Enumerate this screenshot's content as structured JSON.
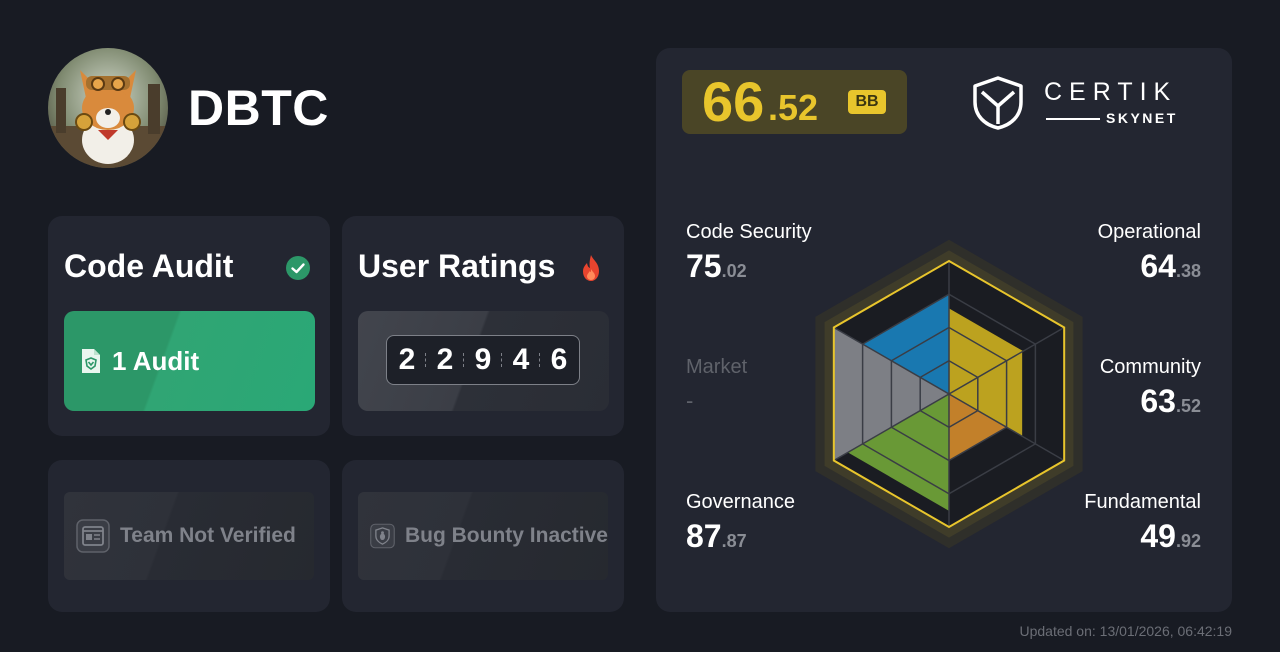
{
  "project": {
    "name": "DBTC",
    "avatar_icon": "corgi-miner-avatar"
  },
  "code_audit": {
    "title": "Code Audit",
    "status_icon": "verified-check-icon",
    "status_color": "#2c9768",
    "button_label": "1 Audit",
    "button_icon": "audit-document-icon"
  },
  "user_ratings": {
    "title": "User Ratings",
    "icon": "fire-icon",
    "digits": [
      "2",
      "2",
      "9",
      "4",
      "6"
    ]
  },
  "team": {
    "label": "Team Not Verified",
    "icon": "id-card-icon"
  },
  "bug_bounty": {
    "label": "Bug Bounty Inactive",
    "icon": "shield-bug-icon"
  },
  "score": {
    "integer": "66",
    "decimal": ".52",
    "grade": "BB",
    "color": "#e8c52c"
  },
  "brand": {
    "name": "CERTIK",
    "sub": "SKYNET",
    "logo_icon": "certik-shield-logo"
  },
  "metrics": {
    "code_security": {
      "label": "Code Security",
      "int": "75",
      "dec": ".02"
    },
    "operational": {
      "label": "Operational",
      "int": "64",
      "dec": ".38"
    },
    "market": {
      "label": "Market",
      "value": "-"
    },
    "community": {
      "label": "Community",
      "int": "63",
      "dec": ".52"
    },
    "governance": {
      "label": "Governance",
      "int": "87",
      "dec": ".87"
    },
    "fundamental": {
      "label": "Fundamental",
      "int": "49",
      "dec": ".92"
    }
  },
  "chart_data": {
    "type": "radar",
    "categories": [
      "Code Security",
      "Operational",
      "Community",
      "Fundamental",
      "Governance",
      "Market"
    ],
    "values": [
      75.02,
      64.38,
      63.52,
      49.92,
      87.87,
      null
    ],
    "colors": [
      "#1a8ccf",
      "#e0bf1f",
      "#e0bf1f",
      "#e8962c",
      "#7bb43a",
      "#8f9197"
    ],
    "range": [
      0,
      100
    ]
  },
  "updated": "Updated on: 13/01/2026, 06:42:19"
}
